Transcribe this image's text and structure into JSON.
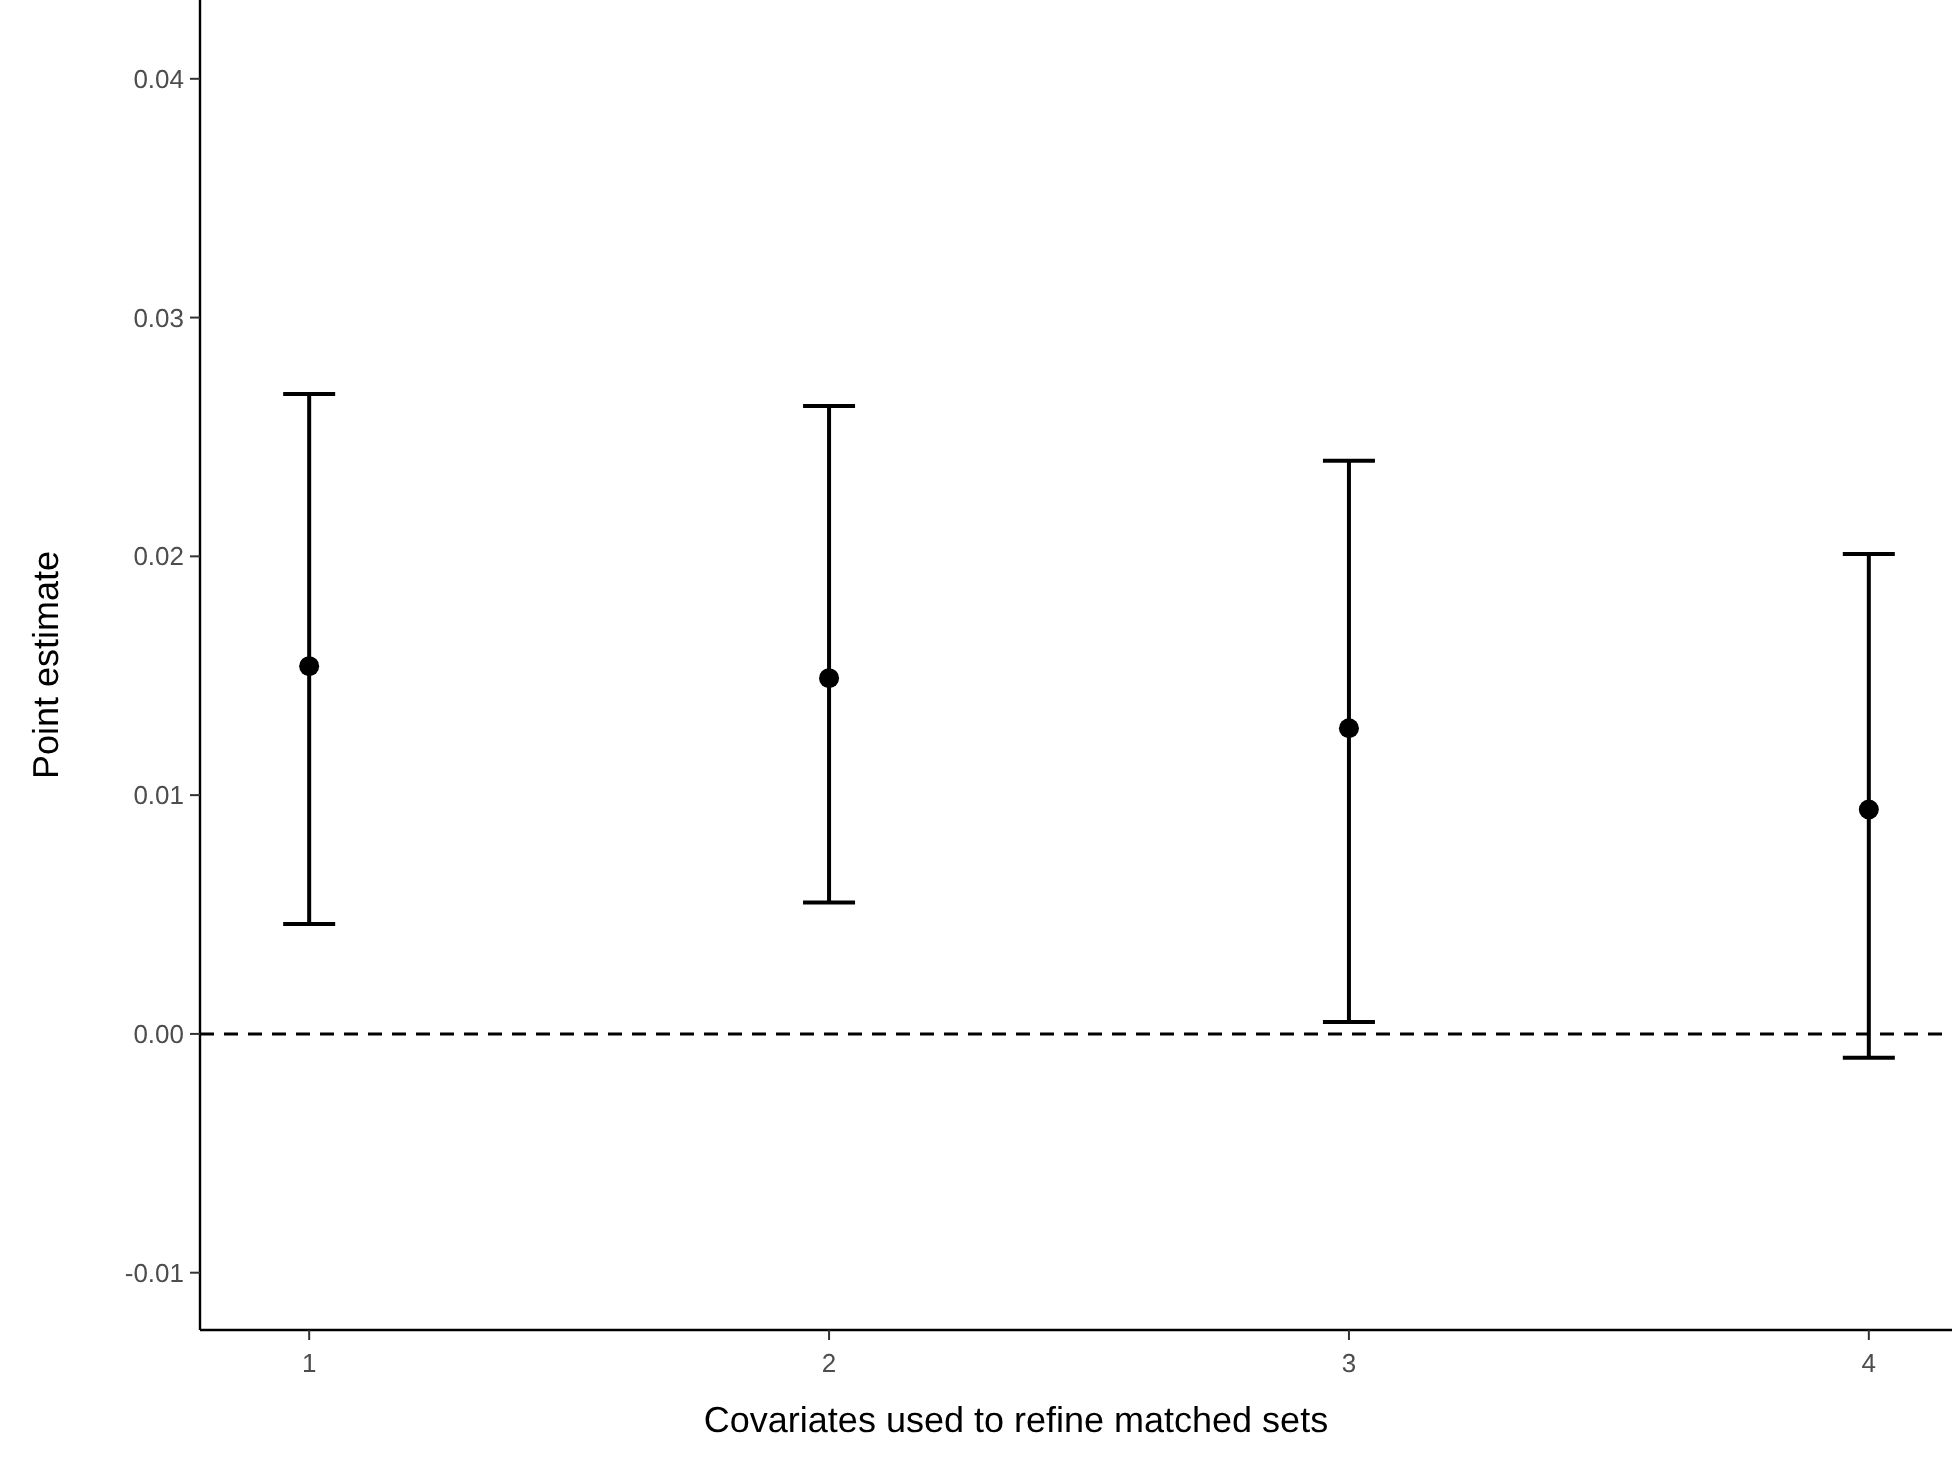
{
  "chart_data": {
    "type": "scatter",
    "xlabel": "Covariates used to refine matched sets",
    "ylabel": "Point estimate",
    "x": [
      1,
      2,
      3,
      4
    ],
    "values": [
      0.0154,
      0.0149,
      0.0128,
      0.0094
    ],
    "errors": [
      [
        0.0046,
        0.0268
      ],
      [
        0.0055,
        0.0263
      ],
      [
        0.0005,
        0.024
      ],
      [
        -0.001,
        0.0201
      ]
    ],
    "color": "#000000",
    "marker": "circle",
    "grid": false,
    "xlim": [
      0.79,
      4.16
    ],
    "xticks": [
      1,
      2,
      3,
      4
    ],
    "ylim": [
      -0.0124,
      0.0433
    ],
    "yticks": [
      {
        "value": -0.01,
        "label": "-0.01"
      },
      {
        "value": 0,
        "label": "0.00"
      },
      {
        "value": 0.01,
        "label": "0.01"
      },
      {
        "value": 0.02,
        "label": "0.02"
      },
      {
        "value": 0.03,
        "label": "0.03"
      },
      {
        "value": 0.04,
        "label": "0.04"
      }
    ],
    "ref_lines": [
      {
        "axis": "y",
        "value": 0,
        "line_style": "dashed",
        "color": "#000000"
      }
    ]
  }
}
